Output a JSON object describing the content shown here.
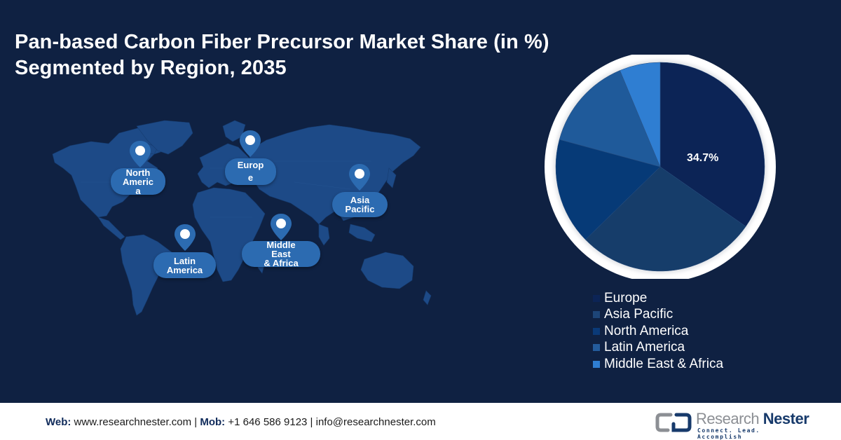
{
  "title": {
    "line1": "Pan-based Carbon Fiber Precursor Market Share (in %)",
    "line2": "Segmented by Region, 2035"
  },
  "colors": {
    "background": "#0f2142",
    "map_land": "#1d4a87",
    "bubble": "#2c6bb1",
    "europe": "#0c2456",
    "asia_pacific": "#163d6a",
    "north_america": "#063a77",
    "latin_america": "#1f5a9a",
    "middle_east_africa": "#2f7ed2"
  },
  "map": {
    "markers": [
      {
        "id": "north-america",
        "label_lines": [
          "North",
          "Americ",
          "a"
        ]
      },
      {
        "id": "europe",
        "label_lines": [
          "Europ",
          "e"
        ]
      },
      {
        "id": "asia-pacific",
        "label_lines": [
          "Asia",
          "Pacific"
        ]
      },
      {
        "id": "latin-america",
        "label_lines": [
          "Latin",
          "America"
        ]
      },
      {
        "id": "middle-east-africa",
        "label_lines": [
          "Middle",
          "East",
          "& Africa"
        ]
      }
    ]
  },
  "chart_data": {
    "type": "pie",
    "title": "Pan-based Carbon Fiber Precursor Market Share (in %) Segmented by Region, 2035",
    "categories": [
      "Europe",
      "Asia Pacific",
      "North America",
      "Latin America",
      "Middle East & Africa"
    ],
    "values": [
      34.7,
      28.0,
      16.5,
      14.5,
      6.3
    ],
    "labeled_values": {
      "Europe": "34.7%"
    },
    "start_angle": "12 o'clock, clockwise",
    "legend_position": "bottom-right"
  },
  "pie": {
    "label": "34.7%"
  },
  "legend": {
    "items": [
      {
        "label": "Europe"
      },
      {
        "label": "Asia Pacific"
      },
      {
        "label": "North America"
      },
      {
        "label": "Latin America"
      },
      {
        "label": "Middle East & Africa"
      }
    ]
  },
  "footer": {
    "web_label": "Web:",
    "web_value": " www.researchnester.com | ",
    "mob_label": "Mob:",
    "mob_value": " +1 646 586 9123 | info@researchnester.com",
    "logo_word1": "Research",
    "logo_word2": "Nester",
    "logo_tagline": "Connect. Lead. Accomplish"
  }
}
